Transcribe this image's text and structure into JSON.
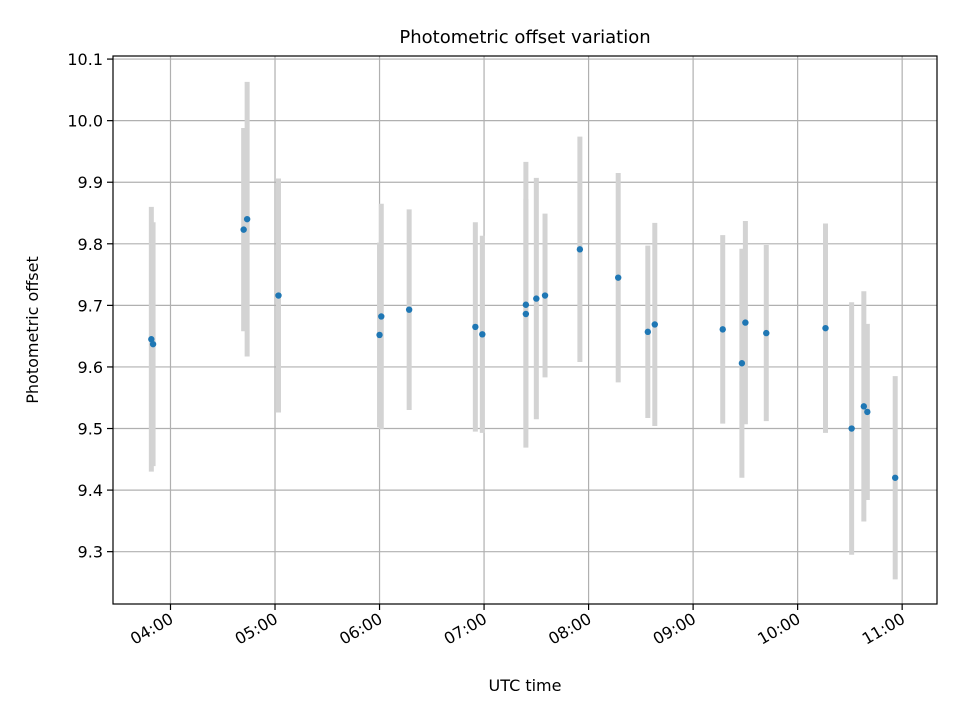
{
  "chart_data": {
    "type": "scatter",
    "title": "Photometric offset variation",
    "xlabel": "UTC time",
    "ylabel": "Photometric offset",
    "xlim": [
      "03:27",
      "11:20"
    ],
    "ylim": [
      9.215,
      10.105
    ],
    "x_ticks": [
      "04:00",
      "05:00",
      "06:00",
      "07:00",
      "08:00",
      "09:00",
      "10:00",
      "11:00"
    ],
    "y_ticks": [
      9.3,
      9.4,
      9.5,
      9.6,
      9.7,
      9.8,
      9.9,
      10.0,
      10.1
    ],
    "y_tick_labels": [
      "9.3",
      "9.4",
      "9.5",
      "9.6",
      "9.7",
      "9.8",
      "9.9",
      "10.0",
      "10.1"
    ],
    "grid": true,
    "marker_color": "#1f77b4",
    "errorbar_color": "#d3d3d3",
    "series": [
      {
        "points": [
          {
            "x": "03:49",
            "y": 9.645,
            "err": 0.215
          },
          {
            "x": "03:50",
            "y": 9.637,
            "err": 0.198
          },
          {
            "x": "04:42",
            "y": 9.823,
            "err": 0.165
          },
          {
            "x": "04:44",
            "y": 9.84,
            "err": 0.223
          },
          {
            "x": "05:02",
            "y": 9.716,
            "err": 0.19
          },
          {
            "x": "06:00",
            "y": 9.652,
            "err": 0.15
          },
          {
            "x": "06:01",
            "y": 9.682,
            "err": 0.183
          },
          {
            "x": "06:17",
            "y": 9.693,
            "err": 0.163
          },
          {
            "x": "06:55",
            "y": 9.665,
            "err": 0.17
          },
          {
            "x": "06:59",
            "y": 9.653,
            "err": 0.16
          },
          {
            "x": "07:24",
            "y": 9.701,
            "err": 0.232
          },
          {
            "x": "07:24",
            "y": 9.686,
            "err": 0.187
          },
          {
            "x": "07:30",
            "y": 9.711,
            "err": 0.196
          },
          {
            "x": "07:35",
            "y": 9.716,
            "err": 0.133
          },
          {
            "x": "07:55",
            "y": 9.791,
            "err": 0.183
          },
          {
            "x": "08:17",
            "y": 9.745,
            "err": 0.17
          },
          {
            "x": "08:34",
            "y": 9.657,
            "err": 0.14
          },
          {
            "x": "08:38",
            "y": 9.669,
            "err": 0.165
          },
          {
            "x": "09:17",
            "y": 9.661,
            "err": 0.153
          },
          {
            "x": "09:28",
            "y": 9.606,
            "err": 0.186
          },
          {
            "x": "09:30",
            "y": 9.672,
            "err": 0.165
          },
          {
            "x": "09:42",
            "y": 9.655,
            "err": 0.143
          },
          {
            "x": "10:16",
            "y": 9.663,
            "err": 0.17
          },
          {
            "x": "10:31",
            "y": 9.5,
            "err": 0.205
          },
          {
            "x": "10:38",
            "y": 9.536,
            "err": 0.187
          },
          {
            "x": "10:40",
            "y": 9.527,
            "err": 0.143
          },
          {
            "x": "10:56",
            "y": 9.42,
            "err": 0.165
          }
        ]
      }
    ]
  }
}
